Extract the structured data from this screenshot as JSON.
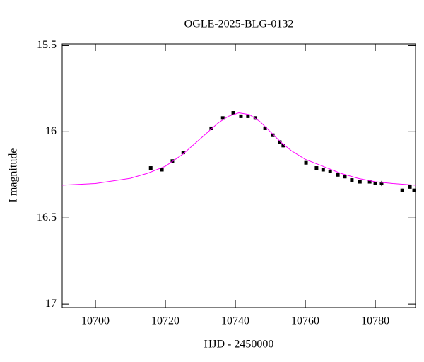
{
  "chart_data": {
    "type": "scatter",
    "title": "OGLE-2025-BLG-0132",
    "x_label": "HJD - 2450000",
    "y_label": "I magnitude",
    "xlim": [
      10690.5,
      10791.5
    ],
    "xticks": [
      10700,
      10720,
      10740,
      10760,
      10780
    ],
    "ylim": [
      15.49,
      17.02
    ],
    "yticks": [
      {
        "value": 15.5,
        "label": "15.5"
      },
      16,
      16.5,
      17
    ],
    "y_inverted": true,
    "series": [
      {
        "type": "scatter",
        "color": "#000000",
        "x": [
          10715.8,
          10719.0,
          10722.0,
          10725.1,
          10733.1,
          10736.4,
          10739.4,
          10741.6,
          10743.6,
          10745.7,
          10748.5,
          10750.7,
          10752.7,
          10753.7,
          10760.2,
          10763.2,
          10765.1,
          10767.1,
          10769.3,
          10771.3,
          10773.3,
          10775.6,
          10778.4,
          10780.0,
          10781.8,
          10787.7,
          10789.9,
          10791.1
        ],
        "values": [
          16.21,
          16.22,
          16.17,
          16.12,
          15.98,
          15.92,
          15.89,
          15.91,
          15.91,
          15.92,
          15.98,
          16.02,
          16.06,
          16.08,
          16.18,
          16.21,
          16.22,
          16.23,
          16.25,
          16.26,
          16.28,
          16.29,
          16.29,
          16.3,
          16.3,
          16.34,
          16.32,
          16.34
        ],
        "errors": [
          0.01,
          0.01,
          0.01,
          0.01,
          0.01,
          0.01,
          0.01,
          0.01,
          0.01,
          0.01,
          0.01,
          0.01,
          0.01,
          0.01,
          0.01,
          0.01,
          0.01,
          0.01,
          0.01,
          0.01,
          0.01,
          0.01,
          0.01,
          0.01,
          0.015,
          0.01,
          0.01,
          0.01
        ]
      },
      {
        "type": "line",
        "color": "#ff00ff",
        "x": [
          10690.5,
          10700,
          10710,
          10715,
          10720,
          10725,
          10730,
          10735,
          10738,
          10741,
          10744,
          10747,
          10750,
          10753,
          10756,
          10760,
          10765,
          10770,
          10775,
          10780,
          10785,
          10791.5
        ],
        "values": [
          16.31,
          16.3,
          16.27,
          16.24,
          16.2,
          16.13,
          16.04,
          15.95,
          15.91,
          15.89,
          15.9,
          15.94,
          16.0,
          16.06,
          16.11,
          16.16,
          16.2,
          16.24,
          16.27,
          16.29,
          16.3,
          16.31
        ]
      }
    ]
  }
}
